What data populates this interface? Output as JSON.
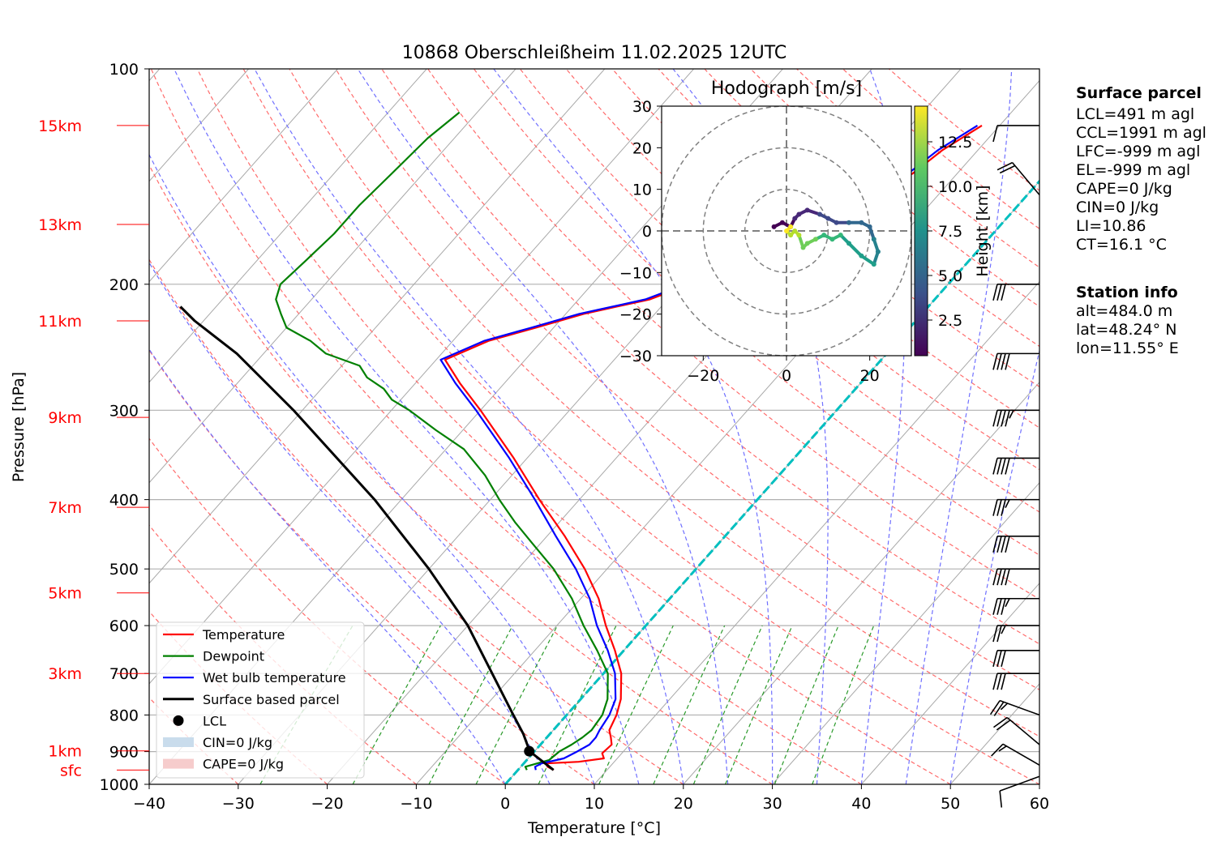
{
  "chart_data": {
    "type": "skew-t",
    "title": "10868 Oberschleißheim 11.02.2025 12UTC",
    "xlabel": "Temperature [°C]",
    "ylabel": "Pressure [hPa]",
    "xlim": [
      -40,
      60
    ],
    "ylim": [
      1000,
      100
    ],
    "log_pressure": true,
    "grid": true,
    "x_ticks": [
      "−40",
      "−30",
      "−20",
      "−10",
      "0",
      "10",
      "20",
      "30",
      "40",
      "50",
      "60"
    ],
    "y_ticks": [
      {
        "p": 100,
        "label": "100"
      },
      {
        "p": 200,
        "label": "200"
      },
      {
        "p": 300,
        "label": "300"
      },
      {
        "p": 400,
        "label": "400"
      },
      {
        "p": 500,
        "label": "500"
      },
      {
        "p": 600,
        "label": "600"
      },
      {
        "p": 700,
        "label": "700"
      },
      {
        "p": 800,
        "label": "800"
      },
      {
        "p": 900,
        "label": "900"
      },
      {
        "p": 1000,
        "label": "1000"
      }
    ],
    "height_ticks": [
      {
        "p": 955,
        "label": "sfc"
      },
      {
        "p": 898,
        "label": "1km"
      },
      {
        "p": 700,
        "label": "3km"
      },
      {
        "p": 540,
        "label": "5km"
      },
      {
        "p": 410,
        "label": "7km"
      },
      {
        "p": 307,
        "label": "9km"
      },
      {
        "p": 225,
        "label": "11km"
      },
      {
        "p": 165,
        "label": "13km"
      },
      {
        "p": 120,
        "label": "15km"
      }
    ],
    "series": [
      {
        "name": "Temperature",
        "color": "#ff0000",
        "points": [
          [
            955,
            4.0
          ],
          [
            945,
            3.0
          ],
          [
            935,
            2.5
          ],
          [
            930,
            6.0
          ],
          [
            920,
            8.5
          ],
          [
            905,
            7.8
          ],
          [
            880,
            8.0
          ],
          [
            860,
            7.2
          ],
          [
            840,
            6.3
          ],
          [
            800,
            5.6
          ],
          [
            760,
            4.5
          ],
          [
            700,
            2.0
          ],
          [
            650,
            -1.0
          ],
          [
            600,
            -4.5
          ],
          [
            550,
            -8.0
          ],
          [
            500,
            -12.5
          ],
          [
            450,
            -18.0
          ],
          [
            400,
            -24.5
          ],
          [
            350,
            -31.5
          ],
          [
            300,
            -40.0
          ],
          [
            275,
            -45.0
          ],
          [
            255,
            -49.0
          ],
          [
            240,
            -46.0
          ],
          [
            230,
            -42.0
          ],
          [
            220,
            -38.0
          ],
          [
            210,
            -32.0
          ],
          [
            200,
            -29.0
          ],
          [
            190,
            -27.0
          ],
          [
            180,
            -23.0
          ],
          [
            170,
            -21.0
          ],
          [
            160,
            -17.0
          ],
          [
            150,
            -17.0
          ],
          [
            140,
            -15.0
          ],
          [
            130,
            -14.0
          ],
          [
            120,
            -12.0
          ]
        ]
      },
      {
        "name": "Dewpoint",
        "color": "#008000",
        "points": [
          [
            955,
            1.0
          ],
          [
            945,
            0.5
          ],
          [
            935,
            1.5
          ],
          [
            925,
            2.5
          ],
          [
            900,
            2.8
          ],
          [
            880,
            3.5
          ],
          [
            860,
            4.0
          ],
          [
            840,
            4.3
          ],
          [
            800,
            4.0
          ],
          [
            760,
            3.0
          ],
          [
            700,
            0.5
          ],
          [
            650,
            -3.0
          ],
          [
            600,
            -7.0
          ],
          [
            550,
            -11.0
          ],
          [
            500,
            -16.0
          ],
          [
            460,
            -21.0
          ],
          [
            430,
            -25.0
          ],
          [
            400,
            -29.0
          ],
          [
            370,
            -33.0
          ],
          [
            340,
            -38.0
          ],
          [
            320,
            -43.0
          ],
          [
            300,
            -48.0
          ],
          [
            290,
            -51.0
          ],
          [
            280,
            -53.0
          ],
          [
            270,
            -56.0
          ],
          [
            260,
            -58.0
          ],
          [
            250,
            -63.0
          ],
          [
            240,
            -66.0
          ],
          [
            230,
            -70.0
          ],
          [
            220,
            -72.0
          ],
          [
            210,
            -74.0
          ],
          [
            200,
            -75.0
          ],
          [
            185,
            -74.5
          ],
          [
            170,
            -74.0
          ],
          [
            155,
            -74.0
          ],
          [
            140,
            -73.5
          ],
          [
            125,
            -73.0
          ],
          [
            115,
            -72.0
          ]
        ]
      },
      {
        "name": "Wet bulb temperature",
        "color": "#0000ff",
        "points": [
          [
            955,
            2.0
          ],
          [
            945,
            1.6
          ],
          [
            935,
            2.0
          ],
          [
            920,
            4.0
          ],
          [
            900,
            4.8
          ],
          [
            880,
            5.5
          ],
          [
            860,
            5.5
          ],
          [
            840,
            5.2
          ],
          [
            800,
            4.8
          ],
          [
            760,
            3.9
          ],
          [
            700,
            1.3
          ],
          [
            650,
            -1.8
          ],
          [
            600,
            -5.5
          ],
          [
            550,
            -9.0
          ],
          [
            500,
            -13.5
          ],
          [
            450,
            -19.0
          ],
          [
            400,
            -25.0
          ],
          [
            350,
            -32.0
          ],
          [
            300,
            -40.5
          ],
          [
            275,
            -45.5
          ],
          [
            255,
            -49.5
          ],
          [
            240,
            -46.5
          ],
          [
            230,
            -42.5
          ],
          [
            220,
            -38.5
          ],
          [
            210,
            -32.5
          ],
          [
            200,
            -29.5
          ],
          [
            190,
            -27.5
          ],
          [
            180,
            -23.5
          ],
          [
            170,
            -21.5
          ],
          [
            160,
            -17.5
          ],
          [
            150,
            -17.5
          ],
          [
            140,
            -15.5
          ],
          [
            130,
            -14.5
          ],
          [
            120,
            -12.5
          ]
        ]
      },
      {
        "name": "Surface based parcel",
        "color": "#000000",
        "points": [
          [
            955,
            4.0
          ],
          [
            900,
            -0.5
          ],
          [
            850,
            -3.0
          ],
          [
            800,
            -6.0
          ],
          [
            700,
            -12.5
          ],
          [
            600,
            -20.0
          ],
          [
            500,
            -30.0
          ],
          [
            400,
            -43.0
          ],
          [
            300,
            -61.0
          ],
          [
            250,
            -73.0
          ],
          [
            225,
            -81.0
          ],
          [
            215,
            -84.0
          ]
        ]
      }
    ],
    "lcl": {
      "name": "LCL",
      "p": 899,
      "t": -0.6
    },
    "cin_label": "CIN=0 J/kg",
    "cape_label": "CAPE=0 J/kg",
    "wind_barbs": [
      {
        "p": 975,
        "speed_kt": 10,
        "dir": 250
      },
      {
        "p": 940,
        "speed_kt": 15,
        "dir": 300
      },
      {
        "p": 880,
        "speed_kt": 20,
        "dir": 310
      },
      {
        "p": 800,
        "speed_kt": 25,
        "dir": 290
      },
      {
        "p": 700,
        "speed_kt": 30,
        "dir": 270
      },
      {
        "p": 650,
        "speed_kt": 30,
        "dir": 270
      },
      {
        "p": 600,
        "speed_kt": 25,
        "dir": 270
      },
      {
        "p": 550,
        "speed_kt": 35,
        "dir": 270
      },
      {
        "p": 500,
        "speed_kt": 40,
        "dir": 270
      },
      {
        "p": 450,
        "speed_kt": 40,
        "dir": 270
      },
      {
        "p": 400,
        "speed_kt": 35,
        "dir": 270
      },
      {
        "p": 350,
        "speed_kt": 40,
        "dir": 270
      },
      {
        "p": 300,
        "speed_kt": 45,
        "dir": 270
      },
      {
        "p": 250,
        "speed_kt": 40,
        "dir": 270
      },
      {
        "p": 200,
        "speed_kt": 30,
        "dir": 270
      },
      {
        "p": 150,
        "speed_kt": 20,
        "dir": 320
      },
      {
        "p": 120,
        "speed_kt": 10,
        "dir": 270
      }
    ],
    "legend": {
      "placement": "lower-left",
      "entries": [
        {
          "label": "Temperature",
          "kind": "line",
          "color": "#ff0000"
        },
        {
          "label": "Dewpoint",
          "kind": "line",
          "color": "#008000"
        },
        {
          "label": "Wet bulb temperature",
          "kind": "line",
          "color": "#0000ff"
        },
        {
          "label": "Surface based parcel",
          "kind": "line",
          "color": "#000000"
        },
        {
          "label": "LCL",
          "kind": "dot",
          "color": "#000000"
        },
        {
          "label": "CIN=0 J/kg",
          "kind": "patch",
          "color": "#c9dcec"
        },
        {
          "label": "CAPE=0 J/kg",
          "kind": "patch",
          "color": "#f6cccc"
        }
      ]
    },
    "hodograph": {
      "title": "Hodograph [m/s]",
      "xlim": [
        -30,
        30
      ],
      "ylim": [
        -30,
        30
      ],
      "x_ticks": [
        "−20",
        "0",
        "20"
      ],
      "y_ticks": [
        "30",
        "20",
        "10",
        "0",
        "−10",
        "−20",
        "−30"
      ],
      "rings": [
        10,
        20,
        30
      ],
      "colorbar_label": "Height [km]",
      "colorbar_ticks": [
        "2.5",
        "5.0",
        "7.5",
        "10.0",
        "12.5"
      ],
      "colorbar_range": [
        0.5,
        14.5
      ],
      "points": [
        [
          -3,
          1,
          0.5
        ],
        [
          -1,
          2,
          1.0
        ],
        [
          1,
          1,
          1.5
        ],
        [
          2,
          3,
          2.0
        ],
        [
          3,
          4,
          2.5
        ],
        [
          5,
          5,
          3.0
        ],
        [
          8,
          4,
          3.5
        ],
        [
          10,
          3,
          4.0
        ],
        [
          12,
          2,
          4.5
        ],
        [
          15,
          2,
          5.0
        ],
        [
          18,
          2,
          5.5
        ],
        [
          20,
          1,
          6.0
        ],
        [
          21,
          -2,
          6.5
        ],
        [
          22,
          -5,
          7.0
        ],
        [
          21,
          -8,
          7.5
        ],
        [
          18,
          -6,
          8.0
        ],
        [
          15,
          -3,
          8.5
        ],
        [
          13,
          -1,
          9.0
        ],
        [
          11,
          -2,
          9.5
        ],
        [
          9,
          -1,
          10.0
        ],
        [
          7,
          -2,
          10.5
        ],
        [
          5,
          -3,
          11.0
        ],
        [
          4,
          -4,
          11.5
        ],
        [
          3,
          -1,
          12.0
        ],
        [
          2,
          0,
          12.5
        ],
        [
          1,
          -1,
          13.0
        ],
        [
          0,
          0,
          13.5
        ],
        [
          1,
          1,
          14.0
        ]
      ]
    }
  },
  "surface_parcel": {
    "heading": "Surface parcel",
    "lines": [
      "LCL=491 m agl",
      "CCL=1991 m agl",
      "LFC=-999 m agl",
      "EL=-999 m agl",
      "CAPE=0 J/kg",
      "CIN=0 J/kg",
      "LI=10.86",
      "CT=16.1 °C"
    ]
  },
  "station_info": {
    "heading": "Station info",
    "lines": [
      "alt=484.0 m",
      "lat=48.24° N",
      "lon=11.55° E"
    ]
  }
}
